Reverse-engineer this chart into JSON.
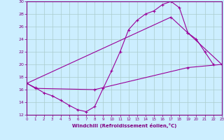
{
  "xlabel": "Windchill (Refroidissement éolien,°C)",
  "xlim": [
    0,
    23
  ],
  "ylim": [
    12,
    30
  ],
  "xticks": [
    0,
    1,
    2,
    3,
    4,
    5,
    6,
    7,
    8,
    9,
    10,
    11,
    12,
    13,
    14,
    15,
    16,
    17,
    18,
    19,
    20,
    21,
    22,
    23
  ],
  "yticks": [
    12,
    14,
    16,
    18,
    20,
    22,
    24,
    26,
    28,
    30
  ],
  "bg_color": "#cceeff",
  "line_color": "#990099",
  "grid_color": "#aacccc",
  "line1_x": [
    0,
    1,
    2,
    3,
    4,
    5,
    6,
    7,
    8,
    9,
    10,
    11,
    12,
    13,
    14,
    15,
    16,
    17,
    18,
    19,
    20,
    21,
    22
  ],
  "line1_y": [
    17,
    16.3,
    15.5,
    15,
    14.3,
    13.5,
    12.8,
    12.5,
    13.3,
    16.2,
    19,
    22,
    25.5,
    27,
    28,
    28.5,
    29.5,
    30,
    29,
    25,
    24,
    22,
    20
  ],
  "line2_x": [
    0,
    17,
    19,
    23
  ],
  "line2_y": [
    17,
    27.5,
    25,
    20
  ],
  "line3_x": [
    0,
    1,
    8,
    19,
    23
  ],
  "line3_y": [
    17,
    16.2,
    16,
    19.5,
    20
  ]
}
